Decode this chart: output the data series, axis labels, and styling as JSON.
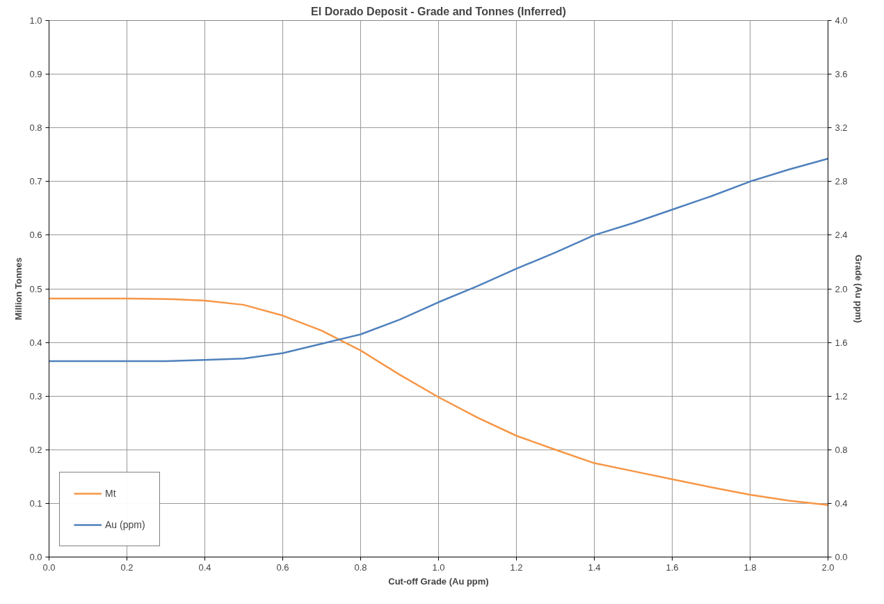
{
  "chart_data": {
    "type": "line",
    "title": "El Dorado Deposit - Grade and Tonnes (Inferred)",
    "xlabel": "Cut-off Grade (Au ppm)",
    "ylabel": "Million Tonnes",
    "y2label": "Grade (Au ppm)",
    "x": [
      0.0,
      0.1,
      0.2,
      0.3,
      0.4,
      0.5,
      0.6,
      0.7,
      0.8,
      0.9,
      1.0,
      1.1,
      1.2,
      1.3,
      1.4,
      1.5,
      1.6,
      1.7,
      1.8,
      1.9,
      2.0
    ],
    "series": [
      {
        "name": "Mt",
        "color": "#f79646",
        "values": [
          0.482,
          0.482,
          0.482,
          0.481,
          0.478,
          0.47,
          0.45,
          0.422,
          0.385,
          0.34,
          0.298,
          0.26,
          0.226,
          0.2,
          0.175,
          0.16,
          0.145,
          0.13,
          0.116,
          0.105,
          0.097
        ]
      },
      {
        "name": "Au (ppm)",
        "color": "#4f81bd",
        "axis": "y2",
        "values": [
          1.46,
          1.46,
          1.46,
          1.46,
          1.47,
          1.48,
          1.52,
          1.59,
          1.66,
          1.77,
          1.9,
          2.02,
          2.15,
          2.27,
          2.4,
          2.49,
          2.59,
          2.69,
          2.8,
          2.89,
          2.97
        ]
      }
    ],
    "xlim": [
      0,
      2.0
    ],
    "xticks": [
      {
        "value": 0,
        "label": "0.0"
      },
      0.2,
      0.4,
      0.6,
      0.8,
      {
        "value": 1,
        "label": "1.0"
      },
      1.2,
      1.4,
      1.6,
      1.8,
      {
        "value": 2,
        "label": "2.0"
      }
    ],
    "ylim": [
      0,
      1.0
    ],
    "yticks": [
      {
        "value": 0,
        "label": "0.0"
      },
      0.1,
      0.2,
      0.3,
      0.4,
      0.5,
      0.6,
      0.7,
      0.8,
      0.9,
      {
        "value": 1,
        "label": "1.0"
      }
    ],
    "y2lim": [
      0,
      4.0
    ],
    "y2ticks": [
      {
        "value": 0,
        "label": "0.0"
      },
      0.4,
      0.8,
      1.2,
      1.6,
      {
        "value": 2,
        "label": "2.0"
      },
      2.4,
      2.8,
      3.2,
      3.6,
      {
        "value": 4,
        "label": "4.0"
      }
    ],
    "grid": true,
    "legend": "bottom left",
    "marker": "none",
    "line_style": "solid"
  }
}
